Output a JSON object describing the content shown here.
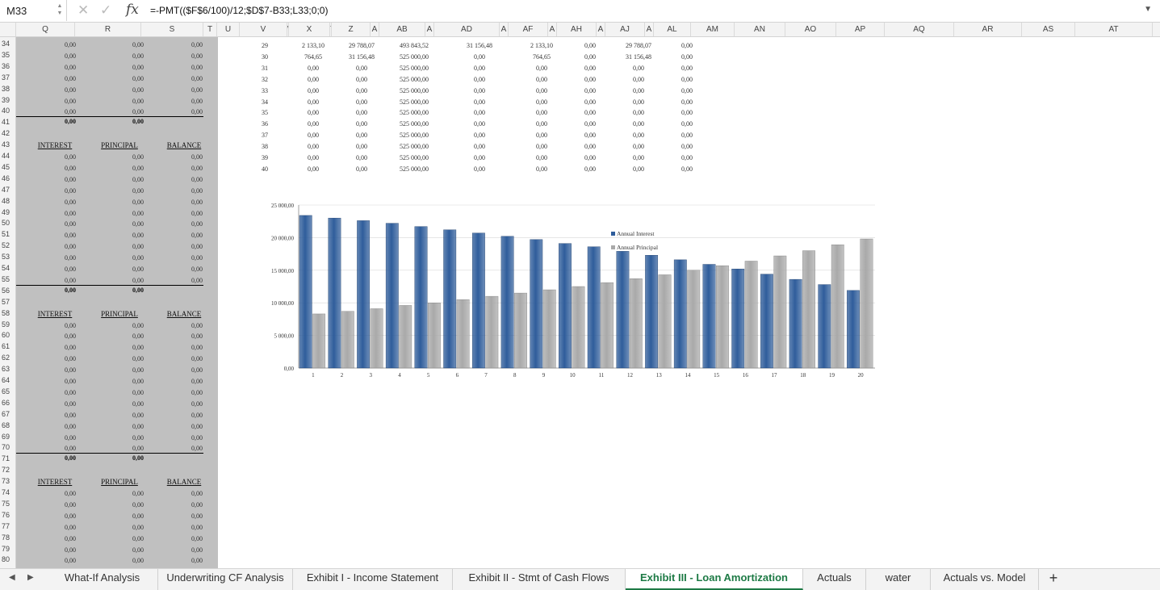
{
  "formula_bar": {
    "name_box": "M33",
    "formula": "=-PMT(($F$6/100)/12;$D$7-B33;L33;0;0)",
    "icons": [
      "cancel-icon",
      "enter-icon",
      "fx-icon",
      "expand-icon"
    ]
  },
  "columns": [
    {
      "label": "Q",
      "w": 73
    },
    {
      "label": "R",
      "w": 82
    },
    {
      "label": "S",
      "w": 77
    },
    {
      "label": "T",
      "w": 17
    },
    {
      "label": "U",
      "w": 28
    },
    {
      "label": "V",
      "w": 59
    },
    {
      "label": "W",
      "w": 2
    },
    {
      "label": "X",
      "w": 51
    },
    {
      "label": "Y",
      "w": 2
    },
    {
      "label": "Z",
      "w": 48
    },
    {
      "label": "A",
      "w": 11
    },
    {
      "label": "AB",
      "w": 57
    },
    {
      "label": "A",
      "w": 11
    },
    {
      "label": "AD",
      "w": 81
    },
    {
      "label": "A",
      "w": 11
    },
    {
      "label": "AF",
      "w": 49
    },
    {
      "label": "A",
      "w": 11
    },
    {
      "label": "AH",
      "w": 49
    },
    {
      "label": "A",
      "w": 11
    },
    {
      "label": "AJ",
      "w": 49
    },
    {
      "label": "A",
      "w": 11
    },
    {
      "label": "AL",
      "w": 46
    },
    {
      "label": "AM",
      "w": 54
    },
    {
      "label": "AN",
      "w": 63
    },
    {
      "label": "AO",
      "w": 63
    },
    {
      "label": "AP",
      "w": 60
    },
    {
      "label": "AQ",
      "w": 86
    },
    {
      "label": "AR",
      "w": 84
    },
    {
      "label": "AS",
      "w": 66
    },
    {
      "label": "AT",
      "w": 96
    }
  ],
  "rows": [
    "34",
    "35",
    "36",
    "37",
    "38",
    "39",
    "40",
    "41",
    "42",
    "43",
    "44",
    "45",
    "46",
    "47",
    "48",
    "49",
    "50",
    "51",
    "52",
    "53",
    "54",
    "55",
    "56",
    "57",
    "58",
    "59",
    "60",
    "61",
    "62",
    "63",
    "64",
    "65",
    "66",
    "67",
    "68",
    "69",
    "70",
    "71",
    "72",
    "73",
    "74",
    "75",
    "76",
    "77",
    "78",
    "79",
    "80"
  ],
  "left_table": {
    "zero": "0,00",
    "headers": {
      "interest": "INTEREST",
      "principal": "PRINCIPAL",
      "balance": "BALANCE"
    }
  },
  "right_table": [
    {
      "v": "29",
      "x": "2 133,10",
      "z": "29 788,07",
      "ab": "493 843,52",
      "ad": "31 156,48",
      "af": "2 133,10",
      "ah": "0,00",
      "aj": "29 788,07",
      "al": "0,00"
    },
    {
      "v": "30",
      "x": "764,65",
      "z": "31 156,48",
      "ab": "525 000,00",
      "ad": "0,00",
      "af": "764,65",
      "ah": "0,00",
      "aj": "31 156,48",
      "al": "0,00"
    },
    {
      "v": "31",
      "x": "0,00",
      "z": "0,00",
      "ab": "525 000,00",
      "ad": "0,00",
      "af": "0,00",
      "ah": "0,00",
      "aj": "0,00",
      "al": "0,00"
    },
    {
      "v": "32",
      "x": "0,00",
      "z": "0,00",
      "ab": "525 000,00",
      "ad": "0,00",
      "af": "0,00",
      "ah": "0,00",
      "aj": "0,00",
      "al": "0,00"
    },
    {
      "v": "33",
      "x": "0,00",
      "z": "0,00",
      "ab": "525 000,00",
      "ad": "0,00",
      "af": "0,00",
      "ah": "0,00",
      "aj": "0,00",
      "al": "0,00"
    },
    {
      "v": "34",
      "x": "0,00",
      "z": "0,00",
      "ab": "525 000,00",
      "ad": "0,00",
      "af": "0,00",
      "ah": "0,00",
      "aj": "0,00",
      "al": "0,00"
    },
    {
      "v": "35",
      "x": "0,00",
      "z": "0,00",
      "ab": "525 000,00",
      "ad": "0,00",
      "af": "0,00",
      "ah": "0,00",
      "aj": "0,00",
      "al": "0,00"
    },
    {
      "v": "36",
      "x": "0,00",
      "z": "0,00",
      "ab": "525 000,00",
      "ad": "0,00",
      "af": "0,00",
      "ah": "0,00",
      "aj": "0,00",
      "al": "0,00"
    },
    {
      "v": "37",
      "x": "0,00",
      "z": "0,00",
      "ab": "525 000,00",
      "ad": "0,00",
      "af": "0,00",
      "ah": "0,00",
      "aj": "0,00",
      "al": "0,00"
    },
    {
      "v": "38",
      "x": "0,00",
      "z": "0,00",
      "ab": "525 000,00",
      "ad": "0,00",
      "af": "0,00",
      "ah": "0,00",
      "aj": "0,00",
      "al": "0,00"
    },
    {
      "v": "39",
      "x": "0,00",
      "z": "0,00",
      "ab": "525 000,00",
      "ad": "0,00",
      "af": "0,00",
      "ah": "0,00",
      "aj": "0,00",
      "al": "0,00"
    },
    {
      "v": "40",
      "x": "0,00",
      "z": "0,00",
      "ab": "525 000,00",
      "ad": "0,00",
      "af": "0,00",
      "ah": "0,00",
      "aj": "0,00",
      "al": "0,00"
    }
  ],
  "chart_data": {
    "type": "bar",
    "categories": [
      "1",
      "2",
      "3",
      "4",
      "5",
      "6",
      "7",
      "8",
      "9",
      "10",
      "11",
      "12",
      "13",
      "14",
      "15",
      "16",
      "17",
      "18",
      "19",
      "20"
    ],
    "series": [
      {
        "name": "Annual Interest",
        "color": "#2f5d9b",
        "values": [
          23400,
          23000,
          22600,
          22200,
          21700,
          21200,
          20700,
          20200,
          19700,
          19100,
          18600,
          17900,
          17300,
          16600,
          15900,
          15200,
          14400,
          13600,
          12800,
          11900
        ]
      },
      {
        "name": "Annual Principal",
        "color": "#a9a9a9",
        "values": [
          8300,
          8700,
          9100,
          9600,
          10000,
          10500,
          11000,
          11500,
          12000,
          12500,
          13100,
          13700,
          14300,
          15000,
          15700,
          16400,
          17200,
          18000,
          18900,
          19800
        ]
      }
    ],
    "y_ticks": [
      "0,00",
      "5 000,00",
      "10 000,00",
      "15 000,00",
      "20 000,00",
      "25 000,00"
    ],
    "ylim": [
      0,
      25000
    ],
    "legend": "center-right"
  },
  "sheet_tabs": [
    {
      "label": "What-If Analysis"
    },
    {
      "label": "Underwriting CF Analysis"
    },
    {
      "label": "Exhibit I - Income Statement"
    },
    {
      "label": "Exhibit II - Stmt of Cash Flows"
    },
    {
      "label": "Exhibit III - Loan Amortization",
      "active": true
    },
    {
      "label": "Actuals"
    },
    {
      "label": "water"
    },
    {
      "label": "Actuals vs. Model"
    }
  ],
  "add_sheet": "+",
  "nav": {
    "prev": "◀",
    "next": "▶"
  }
}
